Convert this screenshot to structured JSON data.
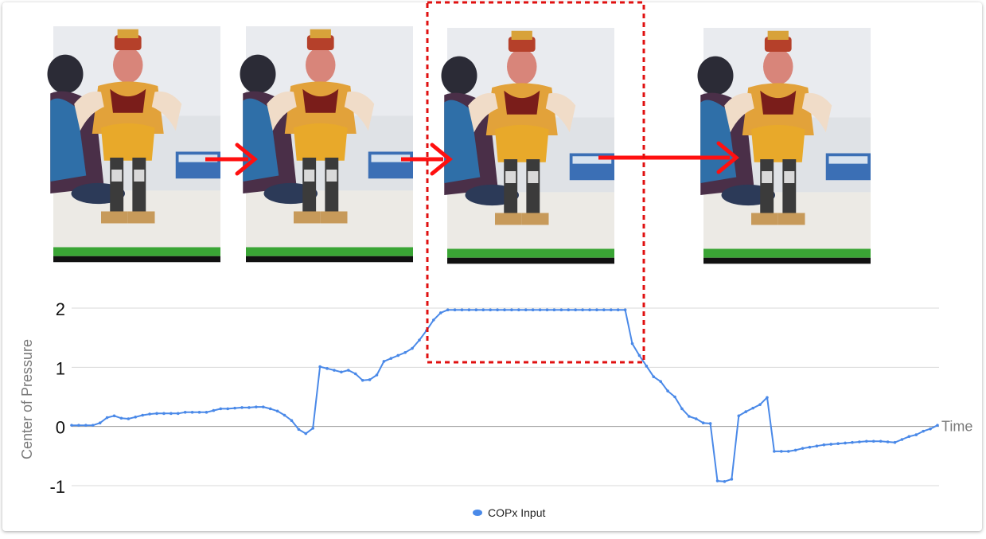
{
  "chart_data": {
    "type": "line",
    "title": "",
    "xlabel": "Time",
    "ylabel": "Center of Pressure",
    "ylim": [
      -1,
      2
    ],
    "yticks": [
      "2",
      "1",
      "0",
      "-1"
    ],
    "grid": true,
    "legend_position": "bottom",
    "series": [
      {
        "name": "COPx Input",
        "color": "#4a89e8",
        "y": [
          0.02,
          0.02,
          0.02,
          0.02,
          0.06,
          0.15,
          0.18,
          0.14,
          0.13,
          0.16,
          0.19,
          0.21,
          0.22,
          0.22,
          0.22,
          0.22,
          0.24,
          0.24,
          0.24,
          0.24,
          0.27,
          0.3,
          0.3,
          0.31,
          0.32,
          0.32,
          0.33,
          0.33,
          0.3,
          0.26,
          0.19,
          0.1,
          -0.05,
          -0.12,
          -0.03,
          1.01,
          0.98,
          0.95,
          0.92,
          0.95,
          0.89,
          0.78,
          0.79,
          0.87,
          1.1,
          1.15,
          1.2,
          1.25,
          1.32,
          1.46,
          1.62,
          1.8,
          1.92,
          1.97,
          1.97,
          1.97,
          1.97,
          1.97,
          1.97,
          1.97,
          1.97,
          1.97,
          1.97,
          1.97,
          1.97,
          1.97,
          1.97,
          1.97,
          1.97,
          1.97,
          1.97,
          1.97,
          1.97,
          1.97,
          1.97,
          1.97,
          1.97,
          1.97,
          1.97,
          1.4,
          1.2,
          1.02,
          0.84,
          0.76,
          0.6,
          0.5,
          0.3,
          0.17,
          0.13,
          0.06,
          0.05,
          -0.92,
          -0.93,
          -0.89,
          0.18,
          0.25,
          0.31,
          0.37,
          0.49,
          -0.42,
          -0.42,
          -0.42,
          -0.4,
          -0.37,
          -0.35,
          -0.33,
          -0.31,
          -0.3,
          -0.29,
          -0.28,
          -0.27,
          -0.26,
          -0.25,
          -0.25,
          -0.25,
          -0.26,
          -0.27,
          -0.22,
          -0.17,
          -0.14,
          -0.08,
          -0.04,
          0.02
        ]
      }
    ]
  },
  "photos": [
    {
      "name": "robot-photo-1",
      "arrow": true
    },
    {
      "name": "robot-photo-2",
      "arrow": true
    },
    {
      "name": "robot-photo-3",
      "arrow": true,
      "highlighted": true
    },
    {
      "name": "robot-photo-4",
      "arrow": false
    }
  ],
  "colors": {
    "highlight_box": "#e01010",
    "arrow": "#ff1010",
    "grid": "#d9d9d9",
    "zero_line": "#999999"
  }
}
